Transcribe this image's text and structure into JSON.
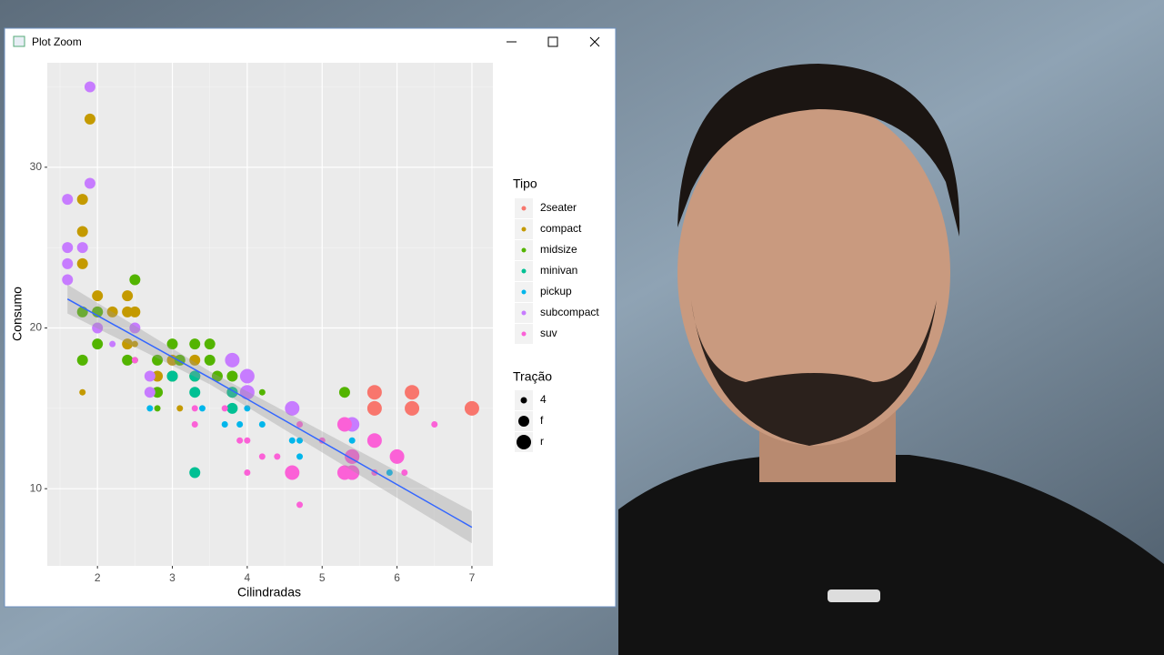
{
  "window": {
    "title": "Plot Zoom"
  },
  "chart_data": {
    "type": "scatter",
    "x_label": "Cilindradas",
    "y_label": "Consumo",
    "xlim": [
      1.33,
      7.28
    ],
    "ylim": [
      5.2,
      36.5
    ],
    "xticks": [
      2,
      3,
      4,
      5,
      6,
      7
    ],
    "yticks": [
      10,
      20,
      30
    ],
    "grid": true,
    "legend_title": "Tipo",
    "size_title": "Tração",
    "size_levels": [
      "4",
      "f",
      "r"
    ],
    "series": [
      {
        "name": "2seater",
        "color": "#F8766D",
        "x": [
          5.7,
          5.7,
          6.2,
          6.2,
          7
        ],
        "values": [
          16,
          15,
          16,
          15,
          15
        ],
        "drv": [
          "r",
          "r",
          "r",
          "r",
          "r"
        ]
      },
      {
        "name": "compact",
        "color": "#C49A00",
        "x": [
          1.9,
          1.8,
          1.8,
          1.8,
          2,
          2,
          2.2,
          2.4,
          2.4,
          2.5,
          2.4,
          2.5,
          1.8,
          2.8,
          3,
          3.3,
          3.3,
          3.1
        ],
        "values": [
          33,
          28,
          26,
          24,
          22,
          21,
          21,
          22,
          21,
          21,
          19,
          19,
          16,
          17,
          18,
          18,
          17,
          15
        ],
        "drv": [
          "f",
          "f",
          "f",
          "f",
          "f",
          "f",
          "f",
          "f",
          "f",
          "f",
          "f",
          "4",
          "4",
          "f",
          "f",
          "f",
          "f",
          "4"
        ]
      },
      {
        "name": "midsize",
        "color": "#53B400",
        "x": [
          2.5,
          1.8,
          2,
          2,
          1.8,
          2.4,
          2.5,
          2.8,
          3,
          3.3,
          3.5,
          2.8,
          3,
          3.1,
          3.6,
          3.8,
          3.8,
          4,
          3.5,
          5.3,
          4.2,
          2.8
        ],
        "values": [
          23,
          21,
          21,
          19,
          18,
          18,
          18,
          18,
          19,
          19,
          19,
          16,
          17,
          18,
          17,
          17,
          16,
          16,
          18,
          16,
          16,
          15
        ],
        "drv": [
          "f",
          "f",
          "f",
          "f",
          "f",
          "f",
          "4",
          "f",
          "f",
          "f",
          "f",
          "f",
          "f",
          "f",
          "f",
          "f",
          "f",
          "f",
          "f",
          "f",
          "4",
          "4"
        ]
      },
      {
        "name": "minivan",
        "color": "#00C094",
        "x": [
          3.3,
          3,
          3.3,
          3.8,
          3.3,
          3.8
        ],
        "values": [
          16,
          17,
          17,
          15,
          11,
          16
        ],
        "drv": [
          "f",
          "f",
          "f",
          "f",
          "f",
          "f"
        ]
      },
      {
        "name": "pickup",
        "color": "#00B6EB",
        "x": [
          2.7,
          3.4,
          3.7,
          3.9,
          4,
          4.2,
          4.7,
          4.7,
          5.3,
          5.4,
          5.9,
          4.6
        ],
        "values": [
          15,
          15,
          14,
          14,
          15,
          14,
          13,
          12,
          11,
          13,
          11,
          13
        ],
        "drv": [
          "4",
          "4",
          "4",
          "4",
          "4",
          "4",
          "4",
          "4",
          "4",
          "4",
          "4",
          "4"
        ]
      },
      {
        "name": "subcompact",
        "color": "#C77CFF",
        "x": [
          1.9,
          1.9,
          1.6,
          1.6,
          1.8,
          1.6,
          1.6,
          2.5,
          2,
          2.2,
          3.8,
          4,
          2.7,
          2.7,
          4.6,
          4,
          5.4,
          5.4,
          5.4
        ],
        "values": [
          35,
          29,
          28,
          25,
          25,
          24,
          23,
          20,
          20,
          19,
          18,
          17,
          17,
          16,
          15,
          16,
          14,
          12,
          11
        ],
        "drv": [
          "f",
          "f",
          "f",
          "f",
          "f",
          "f",
          "f",
          "f",
          "f",
          "4",
          "r",
          "r",
          "f",
          "f",
          "r",
          "r",
          "r",
          "r",
          "r"
        ]
      },
      {
        "name": "suv",
        "color": "#FB61D7",
        "x": [
          2.5,
          3.3,
          3.3,
          3.9,
          4,
          4,
          4.2,
          4.4,
          4.7,
          4.7,
          5,
          5.4,
          5.7,
          6.1,
          6.5,
          3.7,
          4.6,
          5.3,
          5.3,
          5.4,
          5.7,
          6,
          5.4
        ],
        "values": [
          18,
          15,
          14,
          13,
          13,
          11,
          12,
          12,
          14,
          9,
          13,
          12,
          11,
          11,
          14,
          15,
          11,
          14,
          11,
          11,
          13,
          12,
          12
        ],
        "drv": [
          "4",
          "4",
          "4",
          "4",
          "4",
          "4",
          "4",
          "4",
          "4",
          "4",
          "4",
          "4",
          "4",
          "4",
          "4",
          "4",
          "r",
          "r",
          "r",
          "r",
          "r",
          "r",
          "r"
        ]
      }
    ],
    "trend": {
      "color": "#3366FF",
      "x": [
        1.6,
        3.5,
        7
      ],
      "values": [
        21.8,
        16.9,
        7.6
      ],
      "lower": [
        20.9,
        16.5,
        6.6
      ],
      "upper": [
        22.7,
        17.3,
        8.6
      ]
    }
  }
}
